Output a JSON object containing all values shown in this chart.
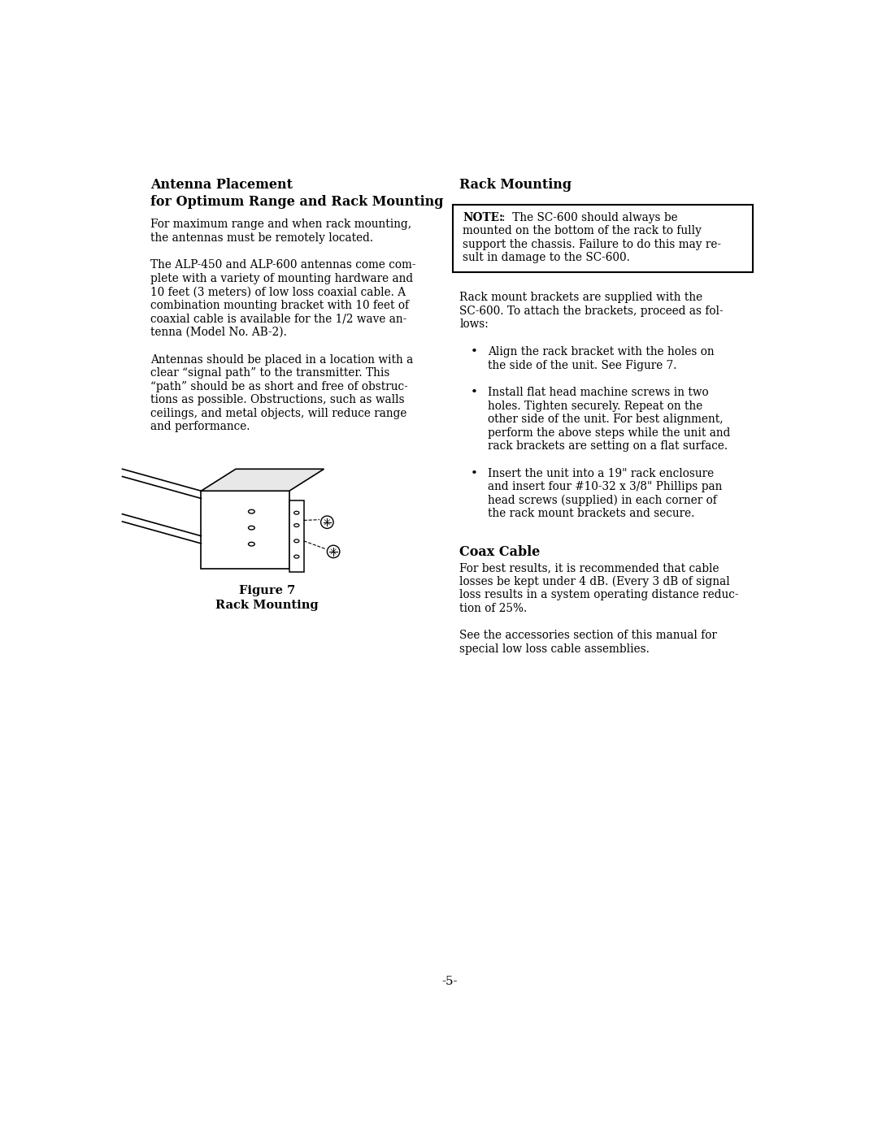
{
  "bg_color": "#ffffff",
  "text_color": "#000000",
  "page_width": 10.8,
  "page_height": 13.97,
  "left_col_title1": "Antenna Placement",
  "left_col_title2": "for Optimum Range and Rack Mounting",
  "left_col_para1_lines": [
    "For maximum range and when rack mounting,",
    "the antennas must be remotely located."
  ],
  "left_col_para2_lines": [
    "The ALP-450 and ALP-600 antennas come com-",
    "plete with a variety of mounting hardware and",
    "10 feet (3 meters) of low loss coaxial cable. A",
    "combination mounting bracket with 10 feet of",
    "coaxial cable is available for the 1/2 wave an-",
    "tenna (Model No. AB-2)."
  ],
  "left_col_para3_lines": [
    "Antennas should be placed in a location with a",
    "clear “signal path” to the transmitter. This",
    "“path” should be as short and free of obstruc-",
    "tions as possible. Obstructions, such as walls",
    "ceilings, and metal objects, will reduce range",
    "and performance."
  ],
  "right_col_title": "Rack Mounting",
  "note_line1_bold": "NOTE",
  "note_line1_rest": ":  The SC-600 should always be",
  "note_line2": "mounted on the bottom of the rack to fully",
  "note_line3": "support the chassis. Failure to do this may re-",
  "note_line4": "sult in damage to the SC-600.",
  "rack_intro_lines": [
    "Rack mount brackets are supplied with the",
    "SC-600. To attach the brackets, proceed as fol-",
    "lows:"
  ],
  "bullet1_lines": [
    "Align the rack bracket with the holes on",
    "the side of the unit. See Figure 7."
  ],
  "bullet2_lines": [
    "Install flat head machine screws in two",
    "holes. Tighten securely. Repeat on the",
    "other side of the unit. For best alignment,",
    "perform the above steps while the unit and",
    "rack brackets are setting on a flat surface."
  ],
  "bullet3_lines": [
    "Insert the unit into a 19\" rack enclosure",
    "and insert four #10-32 x 3/8\" Phillips pan",
    "head screws (supplied) in each corner of",
    "the rack mount brackets and secure."
  ],
  "coax_title": "Coax Cable",
  "coax_para1_lines": [
    "For best results, it is recommended that cable",
    "losses be kept under 4 dB. (Every 3 dB of signal",
    "loss results in a system operating distance reduc-",
    "tion of 25%."
  ],
  "coax_para2_lines": [
    "See the accessories section of this manual for",
    "special low loss cable assemblies."
  ],
  "figure_caption1": "Figure 7",
  "figure_caption2": "Rack Mounting",
  "page_number": "-5-"
}
